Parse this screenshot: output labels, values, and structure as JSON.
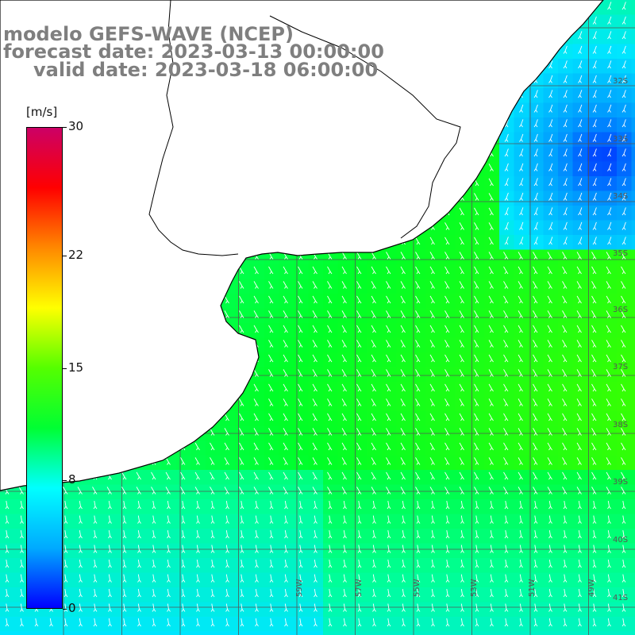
{
  "title": {
    "line1": "modelo GEFS-WAVE (NCEP)",
    "line2": "forecast date: 2023-03-13 00:00:00",
    "line3": "valid date: 2023-03-18 06:00:00"
  },
  "colorbar": {
    "unit": "[m/s]",
    "ticks": [
      "30",
      "22",
      "15",
      "8",
      "0"
    ],
    "tick_values": [
      30,
      22,
      15,
      8,
      0
    ],
    "range": [
      0,
      30
    ],
    "colors": [
      "#0000ff",
      "#00aaff",
      "#00ffff",
      "#00ff33",
      "#55ff00",
      "#ffff00",
      "#ff8800",
      "#ff0000",
      "#cc0066"
    ]
  },
  "map": {
    "field": "wind speed",
    "grid": true,
    "land_color": "#ffffff",
    "coast_color": "#000000",
    "arrow_color": "#ffffff",
    "lon_labels": [
      "59W",
      "57W",
      "55W",
      "53W",
      "51W",
      "49W"
    ],
    "lat_labels": [
      "32S",
      "33S",
      "34S",
      "35S",
      "36S",
      "37S",
      "38S",
      "39S",
      "40S",
      "41S"
    ]
  }
}
